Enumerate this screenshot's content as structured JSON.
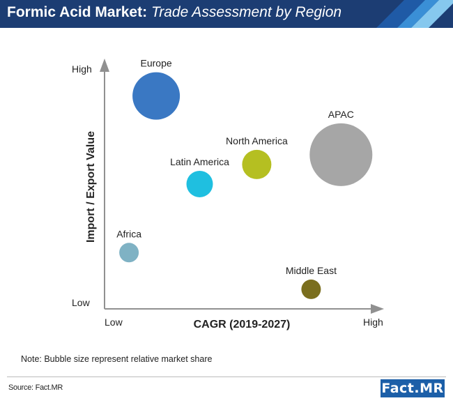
{
  "header": {
    "title_main": "Formic Acid Market:",
    "title_sub": "Trade Assessment by Region"
  },
  "chart_data": {
    "type": "scatter",
    "title": "Formic Acid Market: Trade Assessment by Region",
    "xlabel": "CAGR (2019-2027)",
    "ylabel": "Import / Export Value",
    "x_ticks": {
      "low": "Low",
      "high": "High"
    },
    "y_ticks": {
      "low": "Low",
      "high": "High"
    },
    "xlim": [
      0,
      100
    ],
    "ylim": [
      0,
      100
    ],
    "series": [
      {
        "name": "Europe",
        "x": 19,
        "y": 87,
        "size": 34,
        "color": "#3a78c3"
      },
      {
        "name": "Latin America",
        "x": 35,
        "y": 51,
        "size": 19,
        "color": "#1fbfe0"
      },
      {
        "name": "North America",
        "x": 56,
        "y": 59,
        "size": 21,
        "color": "#b5bf21"
      },
      {
        "name": "APAC",
        "x": 87,
        "y": 63,
        "size": 45,
        "color": "#a6a6a6"
      },
      {
        "name": "Africa",
        "x": 9,
        "y": 23,
        "size": 14,
        "color": "#7fb2c4"
      },
      {
        "name": "Middle East",
        "x": 76,
        "y": 8,
        "size": 14,
        "color": "#7a6e1e"
      }
    ]
  },
  "note": "Note: Bubble size represent relative market share",
  "source": "Source: Fact.MR",
  "logo": "Fact.MR"
}
